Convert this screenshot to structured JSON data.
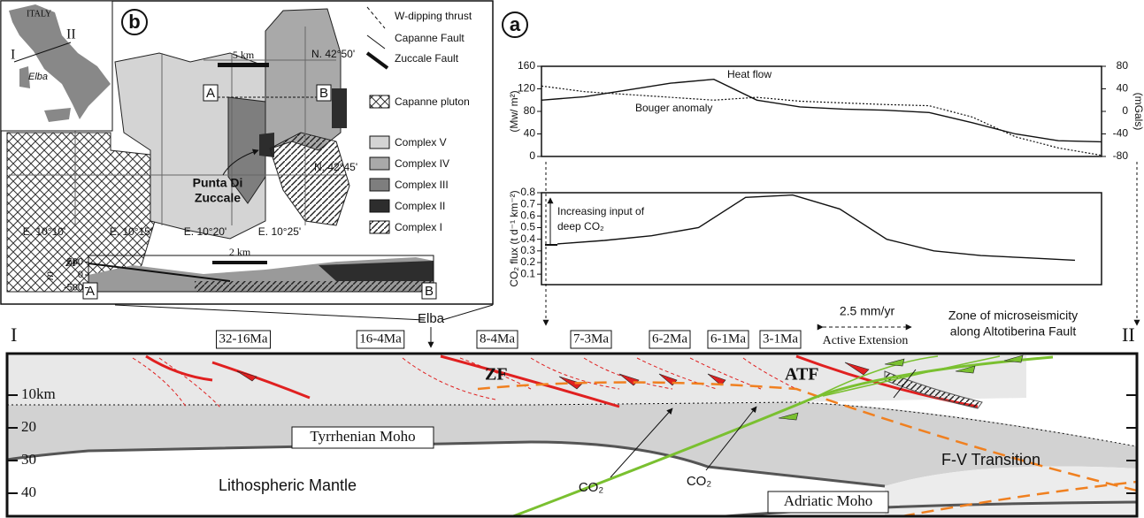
{
  "panel_b": {
    "label": "b",
    "inset": {
      "country": "ITALY",
      "marker_1": "I",
      "marker_2": "II",
      "island": "Elba"
    },
    "scale": "5 km",
    "legend": [
      "W-dipping thrust",
      "Capanne Fault",
      "Zuccale Fault",
      "Capanne pluton",
      "Complex V",
      "Complex IV",
      "Complex III",
      "Complex II",
      "Complex I"
    ],
    "latitudes": [
      "N. 42°50'",
      "N. 42°45'"
    ],
    "longitudes": [
      "E. 10°10'",
      "E. 10°15'",
      "E. 10°20'",
      "E. 10°25'"
    ],
    "section_ends": [
      "A",
      "B"
    ],
    "place": [
      "Punta Di",
      "Zuccale"
    ],
    "cross_section": {
      "yticks": [
        500,
        0,
        -500
      ],
      "unit": "m",
      "fault": "ZF",
      "scale": "2 km",
      "ends": [
        "A",
        "B"
      ]
    }
  },
  "elba_label": "Elba",
  "panel_a": {
    "label": "a",
    "heat_chart": {
      "ylabel": "(Mw/ m²)",
      "y2label": "(mGals)",
      "ylim": [
        0,
        160
      ],
      "yticks": [
        0,
        40,
        80,
        120,
        160
      ],
      "y2lim": [
        -80,
        80
      ],
      "y2ticks": [
        -80,
        -40,
        0,
        40,
        80
      ],
      "series": [
        {
          "name": "Heat flow",
          "values": [
            100,
            106,
            118,
            130,
            137,
            100,
            88,
            84,
            82,
            78,
            60,
            40,
            28,
            26
          ]
        },
        {
          "name": "Bouger anomaly",
          "axis": "y2",
          "values": [
            45,
            35,
            30,
            25,
            20,
            25,
            18,
            15,
            12,
            10,
            -10,
            -45,
            -65,
            -78
          ]
        }
      ]
    },
    "co2_chart": {
      "ylabel": "CO₂ flux (t d⁻¹ km⁻²)",
      "ylim": [
        0.01,
        0.8
      ],
      "yticks": [
        0.1,
        0.2,
        0.3,
        0.4,
        0.5,
        0.6,
        0.7,
        0.8
      ],
      "annotation": [
        "Increasing input of",
        "deep CO₂"
      ],
      "values": [
        0.36,
        0.39,
        0.43,
        0.5,
        0.76,
        0.78,
        0.66,
        0.4,
        0.3,
        0.26,
        0.24,
        0.22
      ]
    }
  },
  "section": {
    "ends": [
      "I",
      "II"
    ],
    "ages": [
      "32-16Ma",
      "16-4Ma",
      "8-4Ma",
      "7-3Ma",
      "6-2Ma",
      "6-1Ma",
      "3-1Ma"
    ],
    "rate": "2.5 mm/yr",
    "extension": "Active Extension",
    "microseismicity": [
      "Zone of microseismicity",
      "along Altotiberina Fault"
    ],
    "depth_ticks": [
      {
        "value": 10,
        "label": "10km"
      },
      20,
      30,
      40
    ],
    "faults": [
      "ZF",
      "ATF"
    ],
    "tyrrhenian_moho": "Tyrrhenian Moho",
    "adriatic_moho": "Adriatic Moho",
    "co2": [
      "CO₂",
      "CO₂"
    ],
    "mantle": "Lithospheric Mantle",
    "transition": "F-V Transition"
  }
}
